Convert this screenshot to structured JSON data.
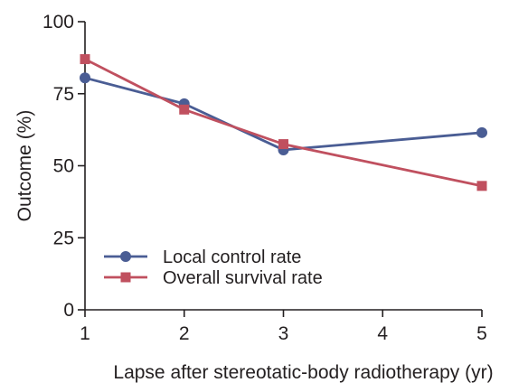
{
  "chart_data": {
    "type": "line",
    "xlabel": "Lapse after stereotatic-body radiotherapy (yr)",
    "ylabel": "Outcome (%)",
    "x": [
      1,
      2,
      3,
      4,
      5
    ],
    "x_ticks": [
      "1",
      "2",
      "3",
      "4",
      "5"
    ],
    "xlim": [
      1,
      5
    ],
    "ylim": [
      0,
      100
    ],
    "y_ticks": [
      "0",
      "25",
      "50",
      "75",
      "100"
    ],
    "grid": false,
    "legend_position": "bottom-left",
    "series": [
      {
        "name": "Local control rate",
        "marker": "circle",
        "color": "#4a5d94",
        "x": [
          1,
          2,
          3,
          5
        ],
        "values": [
          80.5,
          71.5,
          55.5,
          61.5
        ]
      },
      {
        "name": "Overall survival rate",
        "marker": "square",
        "color": "#c0505f",
        "x": [
          1,
          2,
          3,
          5
        ],
        "values": [
          87,
          69.5,
          57.5,
          43
        ]
      }
    ]
  }
}
